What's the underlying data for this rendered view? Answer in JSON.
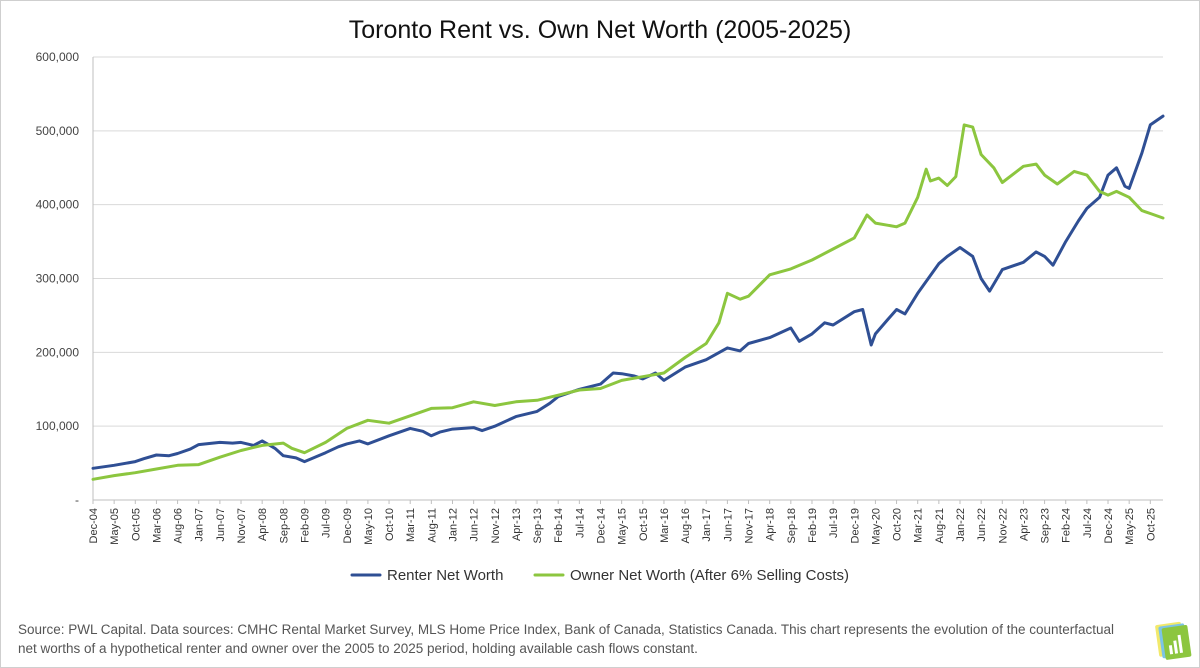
{
  "chart_data": {
    "type": "line",
    "title": "Toronto Rent vs. Own Net Worth (2005-2025)",
    "xlabel": "",
    "ylabel": "",
    "ylim": [
      0,
      600000
    ],
    "yticks": [
      "-",
      "100,000",
      "200,000",
      "300,000",
      "400,000",
      "500,000",
      "600,000"
    ],
    "grid": "horizontal",
    "legend_position": "bottom",
    "x_tick_labels": [
      "Dec-04",
      "May-05",
      "Oct-05",
      "Mar-06",
      "Aug-06",
      "Jan-07",
      "Jun-07",
      "Nov-07",
      "Apr-08",
      "Sep-08",
      "Feb-09",
      "Jul-09",
      "Dec-09",
      "May-10",
      "Oct-10",
      "Mar-11",
      "Aug-11",
      "Jan-12",
      "Jun-12",
      "Nov-12",
      "Apr-13",
      "Sep-13",
      "Feb-14",
      "Jul-14",
      "Dec-14",
      "May-15",
      "Oct-15",
      "Mar-16",
      "Aug-16",
      "Jan-17",
      "Jun-17",
      "Nov-17",
      "Apr-18",
      "Sep-18",
      "Feb-19",
      "Jul-19",
      "Dec-19",
      "May-20",
      "Oct-20",
      "Mar-21",
      "Aug-21",
      "Jan-22",
      "Jun-22",
      "Nov-22",
      "Apr-23",
      "Sep-23",
      "Feb-24",
      "Jul-24",
      "Dec-24",
      "May-25",
      "Oct-25"
    ],
    "series": [
      {
        "name": "Renter Net Worth",
        "color": "#2F4F94",
        "points": [
          [
            "Dec-04",
            43000
          ],
          [
            "May-05",
            47000
          ],
          [
            "Oct-05",
            52000
          ],
          [
            "Dec-05",
            56000
          ],
          [
            "Mar-06",
            61000
          ],
          [
            "Jun-06",
            60000
          ],
          [
            "Aug-06",
            63000
          ],
          [
            "Nov-06",
            69000
          ],
          [
            "Jan-07",
            75000
          ],
          [
            "Jun-07",
            78000
          ],
          [
            "Sep-07",
            77000
          ],
          [
            "Nov-07",
            78000
          ],
          [
            "Feb-08",
            74000
          ],
          [
            "Apr-08",
            80000
          ],
          [
            "Jul-08",
            70000
          ],
          [
            "Sep-08",
            60000
          ],
          [
            "Dec-08",
            57000
          ],
          [
            "Feb-09",
            52000
          ],
          [
            "Jul-09",
            64000
          ],
          [
            "Oct-09",
            72000
          ],
          [
            "Dec-09",
            76000
          ],
          [
            "Mar-10",
            80000
          ],
          [
            "May-10",
            76000
          ],
          [
            "Oct-10",
            87000
          ],
          [
            "Mar-11",
            97000
          ],
          [
            "Jun-11",
            93000
          ],
          [
            "Aug-11",
            87000
          ],
          [
            "Oct-11",
            92000
          ],
          [
            "Jan-12",
            96000
          ],
          [
            "Jun-12",
            98000
          ],
          [
            "Aug-12",
            94000
          ],
          [
            "Nov-12",
            100000
          ],
          [
            "Apr-13",
            113000
          ],
          [
            "Sep-13",
            120000
          ],
          [
            "Dec-13",
            131000
          ],
          [
            "Feb-14",
            140000
          ],
          [
            "Jul-14",
            150000
          ],
          [
            "Dec-14",
            157000
          ],
          [
            "Mar-15",
            172000
          ],
          [
            "May-15",
            171000
          ],
          [
            "Aug-15",
            168000
          ],
          [
            "Oct-15",
            164000
          ],
          [
            "Jan-16",
            172000
          ],
          [
            "Mar-16",
            162000
          ],
          [
            "Aug-16",
            180000
          ],
          [
            "Jan-17",
            190000
          ],
          [
            "Jun-17",
            206000
          ],
          [
            "Sep-17",
            202000
          ],
          [
            "Nov-17",
            212000
          ],
          [
            "Apr-18",
            220000
          ],
          [
            "Sep-18",
            233000
          ],
          [
            "Nov-18",
            215000
          ],
          [
            "Feb-19",
            225000
          ],
          [
            "May-19",
            240000
          ],
          [
            "Jul-19",
            237000
          ],
          [
            "Dec-19",
            255000
          ],
          [
            "Feb-20",
            258000
          ],
          [
            "Apr-20",
            210000
          ],
          [
            "May-20",
            225000
          ],
          [
            "Aug-20",
            245000
          ],
          [
            "Oct-20",
            258000
          ],
          [
            "Dec-20",
            252000
          ],
          [
            "Mar-21",
            280000
          ],
          [
            "Aug-21",
            320000
          ],
          [
            "Oct-21",
            330000
          ],
          [
            "Jan-22",
            342000
          ],
          [
            "Apr-22",
            330000
          ],
          [
            "Jun-22",
            300000
          ],
          [
            "Aug-22",
            283000
          ],
          [
            "Nov-22",
            312000
          ],
          [
            "Apr-23",
            322000
          ],
          [
            "Jul-23",
            336000
          ],
          [
            "Sep-23",
            330000
          ],
          [
            "Nov-23",
            318000
          ],
          [
            "Feb-24",
            350000
          ],
          [
            "May-24",
            378000
          ],
          [
            "Jul-24",
            395000
          ],
          [
            "Oct-24",
            410000
          ],
          [
            "Dec-24",
            440000
          ],
          [
            "Feb-25",
            450000
          ],
          [
            "Apr-25",
            425000
          ],
          [
            "May-25",
            422000
          ],
          [
            "Aug-25",
            470000
          ],
          [
            "Oct-25",
            508000
          ],
          [
            "Jan-26",
            520000
          ]
        ]
      },
      {
        "name": "Owner Net Worth (After 6% Selling Costs)",
        "color": "#8CC63F",
        "points": [
          [
            "Dec-04",
            28000
          ],
          [
            "May-05",
            33000
          ],
          [
            "Oct-05",
            37000
          ],
          [
            "Mar-06",
            42000
          ],
          [
            "Aug-06",
            47000
          ],
          [
            "Jan-07",
            48000
          ],
          [
            "Jun-07",
            58000
          ],
          [
            "Nov-07",
            67000
          ],
          [
            "Apr-08",
            74000
          ],
          [
            "Sep-08",
            77000
          ],
          [
            "Nov-08",
            70000
          ],
          [
            "Feb-09",
            64000
          ],
          [
            "Jul-09",
            78000
          ],
          [
            "Dec-09",
            97000
          ],
          [
            "May-10",
            108000
          ],
          [
            "Oct-10",
            104000
          ],
          [
            "Mar-11",
            114000
          ],
          [
            "Aug-11",
            124000
          ],
          [
            "Jan-12",
            125000
          ],
          [
            "Jun-12",
            133000
          ],
          [
            "Nov-12",
            128000
          ],
          [
            "Apr-13",
            133000
          ],
          [
            "Sep-13",
            135000
          ],
          [
            "Feb-14",
            142000
          ],
          [
            "Jul-14",
            149000
          ],
          [
            "Dec-14",
            151000
          ],
          [
            "May-15",
            162000
          ],
          [
            "Oct-15",
            167000
          ],
          [
            "Mar-16",
            172000
          ],
          [
            "Aug-16",
            193000
          ],
          [
            "Jan-17",
            212000
          ],
          [
            "Apr-17",
            240000
          ],
          [
            "Jun-17",
            280000
          ],
          [
            "Sep-17",
            272000
          ],
          [
            "Nov-17",
            276000
          ],
          [
            "Apr-18",
            305000
          ],
          [
            "Sep-18",
            313000
          ],
          [
            "Feb-19",
            325000
          ],
          [
            "Jul-19",
            340000
          ],
          [
            "Dec-19",
            355000
          ],
          [
            "Mar-20",
            386000
          ],
          [
            "May-20",
            375000
          ],
          [
            "Aug-20",
            372000
          ],
          [
            "Oct-20",
            370000
          ],
          [
            "Dec-20",
            375000
          ],
          [
            "Mar-21",
            410000
          ],
          [
            "May-21",
            448000
          ],
          [
            "Jun-21",
            432000
          ],
          [
            "Aug-21",
            436000
          ],
          [
            "Oct-21",
            426000
          ],
          [
            "Dec-21",
            438000
          ],
          [
            "Feb-22",
            508000
          ],
          [
            "Apr-22",
            505000
          ],
          [
            "Jun-22",
            468000
          ],
          [
            "Sep-22",
            450000
          ],
          [
            "Nov-22",
            430000
          ],
          [
            "Apr-23",
            452000
          ],
          [
            "Jul-23",
            455000
          ],
          [
            "Sep-23",
            440000
          ],
          [
            "Dec-23",
            428000
          ],
          [
            "Apr-24",
            445000
          ],
          [
            "Jul-24",
            440000
          ],
          [
            "Oct-24",
            418000
          ],
          [
            "Dec-24",
            413000
          ],
          [
            "Feb-25",
            418000
          ],
          [
            "May-25",
            410000
          ],
          [
            "Aug-25",
            392000
          ],
          [
            "Oct-25",
            388000
          ],
          [
            "Jan-26",
            382000
          ]
        ]
      }
    ]
  },
  "source_text": "Source: PWL Capital. Data sources: CMHC Rental Market Survey, MLS Home Price Index, Bank of Canada, Statistics Canada. This chart represents the evolution of the counterfactual net worths of a hypothetical renter and owner over the 2005 to 2025 period, holding available cash flows constant.",
  "logo": {
    "icon": "bar-chart-logo-icon",
    "colors": [
      "#F2E96B",
      "#7CC4E6",
      "#8CC63F"
    ]
  }
}
